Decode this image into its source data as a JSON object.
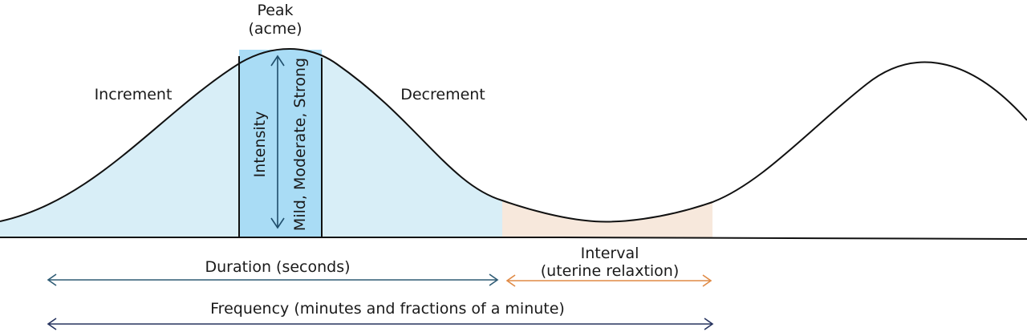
{
  "labels": {
    "peak": "Peak",
    "peak_sub": "(acme)",
    "increment": "Increment",
    "decrement": "Decrement",
    "intensity": "Intensity",
    "intensity_scale": "Mild, Moderate, Strong",
    "interval": "Interval",
    "interval_sub": "(uterine relaxtion)",
    "duration": "Duration (seconds)",
    "frequency": "Frequency (minutes and fractions of a minute)"
  },
  "colors": {
    "curve": "#111111",
    "contraction_fill": "#d8eef7",
    "peak_band_fill": "#a9dcf5",
    "interval_fill": "#f7e8dc",
    "intensity_arrow": "#1f4e6b",
    "duration_arrow": "#2e5b74",
    "interval_arrow": "#e08a45",
    "frequency_arrow": "#26335f"
  }
}
